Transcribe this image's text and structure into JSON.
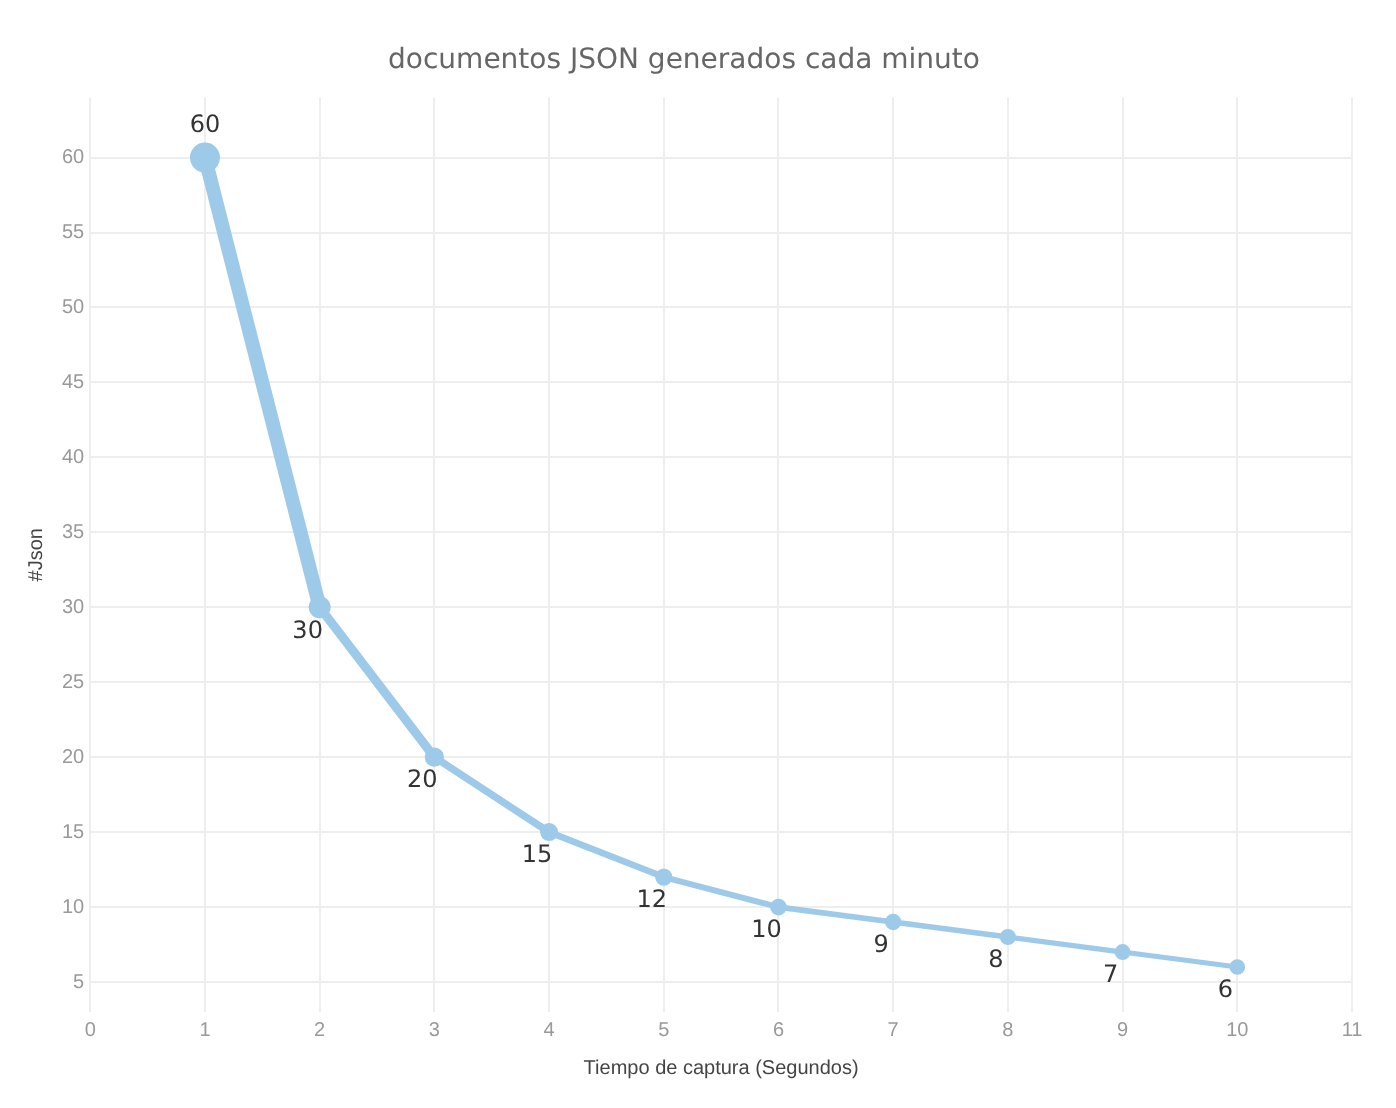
{
  "chart_data": {
    "type": "line",
    "title": "documentos JSON generados cada minuto",
    "xlabel": "Tiempo de captura (Segundos)",
    "ylabel": "#Json",
    "x": [
      1,
      2,
      3,
      4,
      5,
      6,
      7,
      8,
      9,
      10
    ],
    "series": [
      {
        "color": "#9ecae9",
        "values": [
          60,
          30,
          20,
          15,
          12,
          10,
          9,
          8,
          7,
          6
        ]
      }
    ],
    "xlim": [
      0,
      11
    ],
    "xticks": [
      0,
      1,
      2,
      3,
      4,
      5,
      6,
      7,
      8,
      9,
      10,
      11
    ],
    "ylim": [
      3,
      64
    ],
    "yticks": [
      5,
      10,
      15,
      20,
      25,
      30,
      35,
      40,
      45,
      50,
      55,
      60
    ],
    "grid": true,
    "data_labels": true,
    "marker": "circle",
    "line_style": "solid",
    "legend": false
  }
}
